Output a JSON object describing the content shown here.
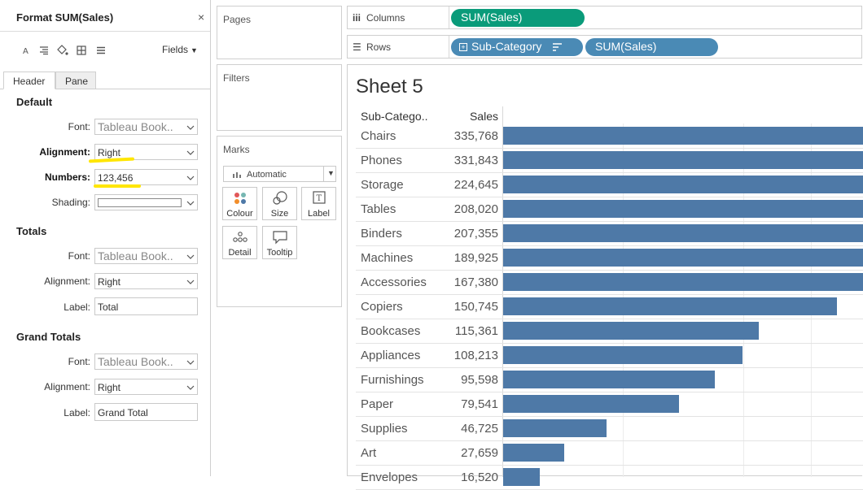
{
  "format_pane": {
    "title": "Format SUM(Sales)",
    "close": "×",
    "fields_label": "Fields",
    "tabs": [
      "Header",
      "Pane"
    ],
    "default": {
      "title": "Default",
      "font_label": "Font:",
      "font_value": "Tableau Book..",
      "alignment_label": "Alignment:",
      "alignment_value": "Right",
      "numbers_label": "Numbers:",
      "numbers_value": "123,456",
      "shading_label": "Shading:"
    },
    "totals": {
      "title": "Totals",
      "font_label": "Font:",
      "font_value": "Tableau Book..",
      "alignment_label": "Alignment:",
      "alignment_value": "Right",
      "label_label": "Label:",
      "label_value": "Total"
    },
    "grand_totals": {
      "title": "Grand Totals",
      "font_label": "Font:",
      "font_value": "Tableau Book..",
      "alignment_label": "Alignment:",
      "alignment_value": "Right",
      "label_label": "Label:",
      "label_value": "Grand Total"
    },
    "highlight_color": "#ffe600"
  },
  "cards": {
    "pages": "Pages",
    "filters": "Filters",
    "marks": "Marks",
    "mark_type": "Automatic",
    "buttons": [
      "Colour",
      "Size",
      "Label",
      "Detail",
      "Tooltip"
    ]
  },
  "shelves": {
    "columns_label": "Columns",
    "rows_label": "Rows",
    "columns_pills": [
      "SUM(Sales)"
    ],
    "rows_pills": [
      "Sub-Category",
      "SUM(Sales)"
    ],
    "green_pill_color": "#0a9b7a",
    "blue_pill_color": "#4a8ab5"
  },
  "view": {
    "sheet_title": "Sheet 5",
    "header_sub": "Sub-Catego..",
    "header_sales": "Sales"
  },
  "chart_data": {
    "type": "bar",
    "orientation": "horizontal",
    "categories": [
      "Chairs",
      "Phones",
      "Storage",
      "Tables",
      "Binders",
      "Machines",
      "Accessories",
      "Copiers",
      "Bookcases",
      "Appliances",
      "Furnishings",
      "Paper",
      "Supplies",
      "Art",
      "Envelopes"
    ],
    "values": [
      335768,
      331843,
      224645,
      208020,
      207355,
      189925,
      167380,
      150745,
      115361,
      108213,
      95598,
      79541,
      46725,
      27659,
      16520
    ],
    "value_labels": [
      "335,768",
      "331,843",
      "224,645",
      "208,020",
      "207,355",
      "189,925",
      "167,380",
      "150,745",
      "115,361",
      "108,213",
      "95,598",
      "79,541",
      "46,725",
      "27,659",
      "16,520"
    ],
    "bar_color": "#4e79a7",
    "xlim": [
      0,
      160000
    ]
  }
}
